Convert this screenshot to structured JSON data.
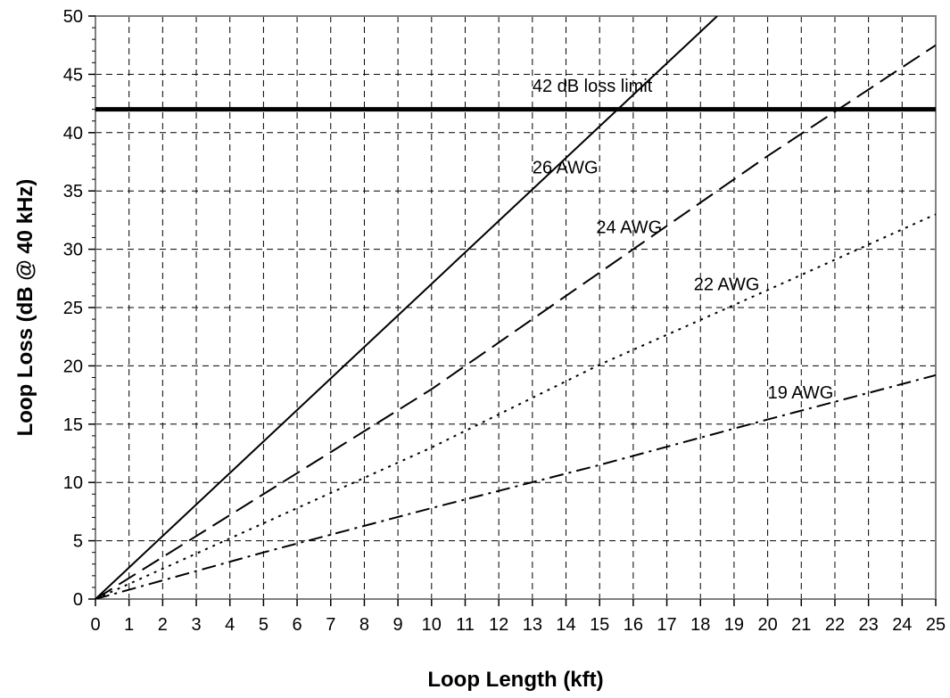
{
  "chart_data": {
    "type": "line",
    "title": "",
    "xlabel": "Loop Length (kft)",
    "ylabel": "Loop Loss (dB @ 40 kHz)",
    "xlim": [
      0,
      25
    ],
    "ylim": [
      0,
      50
    ],
    "x_ticks": [
      0,
      1,
      2,
      3,
      4,
      5,
      6,
      7,
      8,
      9,
      10,
      11,
      12,
      13,
      14,
      15,
      16,
      17,
      18,
      19,
      20,
      21,
      22,
      23,
      24,
      25
    ],
    "y_ticks": [
      0,
      5,
      10,
      15,
      20,
      25,
      30,
      35,
      40,
      45,
      50
    ],
    "grid": true,
    "legend": "none",
    "series": [
      {
        "name": "26 AWG",
        "line_style": "solid",
        "points": [
          [
            0,
            0
          ],
          [
            18.5,
            50
          ]
        ],
        "label": {
          "text": "26 AWG",
          "x": 13.0,
          "y": 36.5
        }
      },
      {
        "name": "24 AWG",
        "line_style": "dashed",
        "points": [
          [
            0,
            0
          ],
          [
            5,
            9
          ],
          [
            10,
            18
          ],
          [
            15,
            28
          ],
          [
            20,
            38
          ],
          [
            25,
            47.5
          ]
        ],
        "label": {
          "text": "24 AWG",
          "x": 14.9,
          "y": 31.4
        }
      },
      {
        "name": "22 AWG",
        "line_style": "dotted",
        "points": [
          [
            0,
            0
          ],
          [
            5,
            6.5
          ],
          [
            10,
            13
          ],
          [
            15,
            20.1
          ],
          [
            20,
            26.5
          ],
          [
            25,
            33
          ]
        ],
        "label": {
          "text": "22 AWG",
          "x": 17.8,
          "y": 26.5
        }
      },
      {
        "name": "19 AWG",
        "line_style": "dash-dot",
        "points": [
          [
            0,
            0
          ],
          [
            5,
            4
          ],
          [
            10,
            7.8
          ],
          [
            15,
            11.5
          ],
          [
            20,
            15.4
          ],
          [
            25,
            19.2
          ]
        ],
        "label": {
          "text": "19 AWG",
          "x": 20.0,
          "y": 17.2
        }
      }
    ],
    "reference_lines": [
      {
        "label": "42 dB loss limit",
        "y": 42,
        "label_position": {
          "x": 13.0,
          "y": 43.5
        }
      }
    ]
  }
}
